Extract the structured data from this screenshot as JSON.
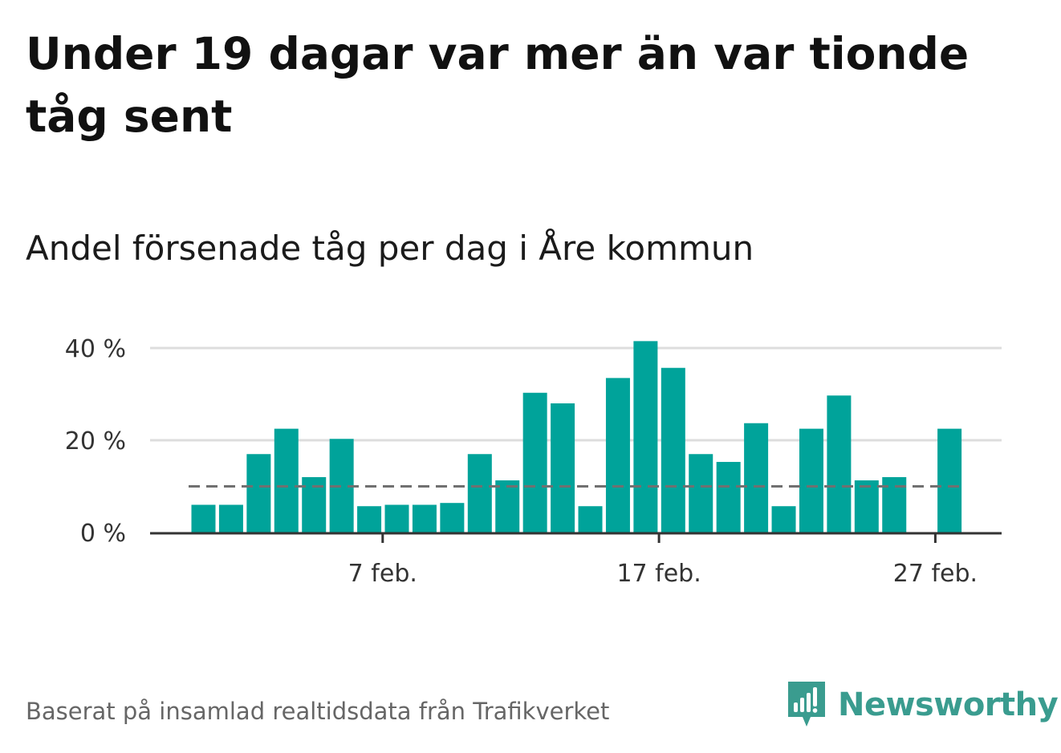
{
  "title": "Under 19 dagar var mer än var tionde tåg sent",
  "subtitle": "Andel försenade tåg per dag i Åre kommun",
  "source": "Baserat på insamlad realtidsdata från Trafikverket",
  "brand": {
    "name": "Newsworthy",
    "icon": "newsworthy-logo-icon",
    "color": "#3a9c8f"
  },
  "colors": {
    "bar": "#00a39a",
    "reference_line": "#707070",
    "grid": "#dddddd",
    "axis": "#333333"
  },
  "chart_data": {
    "type": "bar",
    "unit": "%",
    "x": [
      "2026-02-01",
      "2026-02-02",
      "2026-02-03",
      "2026-02-04",
      "2026-02-05",
      "2026-02-06",
      "2026-02-07",
      "2026-02-08",
      "2026-02-09",
      "2026-02-10",
      "2026-02-11",
      "2026-02-12",
      "2026-02-13",
      "2026-02-14",
      "2026-02-15",
      "2026-02-16",
      "2026-02-17",
      "2026-02-18",
      "2026-02-19",
      "2026-02-20",
      "2026-02-21",
      "2026-02-22",
      "2026-02-23",
      "2026-02-24",
      "2026-02-25",
      "2026-02-26",
      "2026-02-27",
      "2026-02-28"
    ],
    "values": [
      6,
      6,
      17,
      22.5,
      12,
      20.3,
      5.7,
      6,
      6,
      6.4,
      17,
      11.3,
      30.3,
      28,
      5.7,
      33.5,
      41.5,
      35.7,
      17,
      15.3,
      23.7,
      5.7,
      22.5,
      29.7,
      11.3,
      12,
      0,
      22.5
    ],
    "reference_line": 10,
    "ylim": [
      0,
      40
    ],
    "y_ticks": [
      {
        "value": 0,
        "label": "0 %"
      },
      {
        "value": 20,
        "label": "20 %"
      },
      {
        "value": 40,
        "label": "40 %"
      }
    ],
    "x_ticks": [
      {
        "index": 6,
        "label": "7 feb."
      },
      {
        "index": 16,
        "label": "17 feb."
      },
      {
        "index": 26,
        "label": "27 feb."
      }
    ],
    "grid": true,
    "legend": "none"
  }
}
